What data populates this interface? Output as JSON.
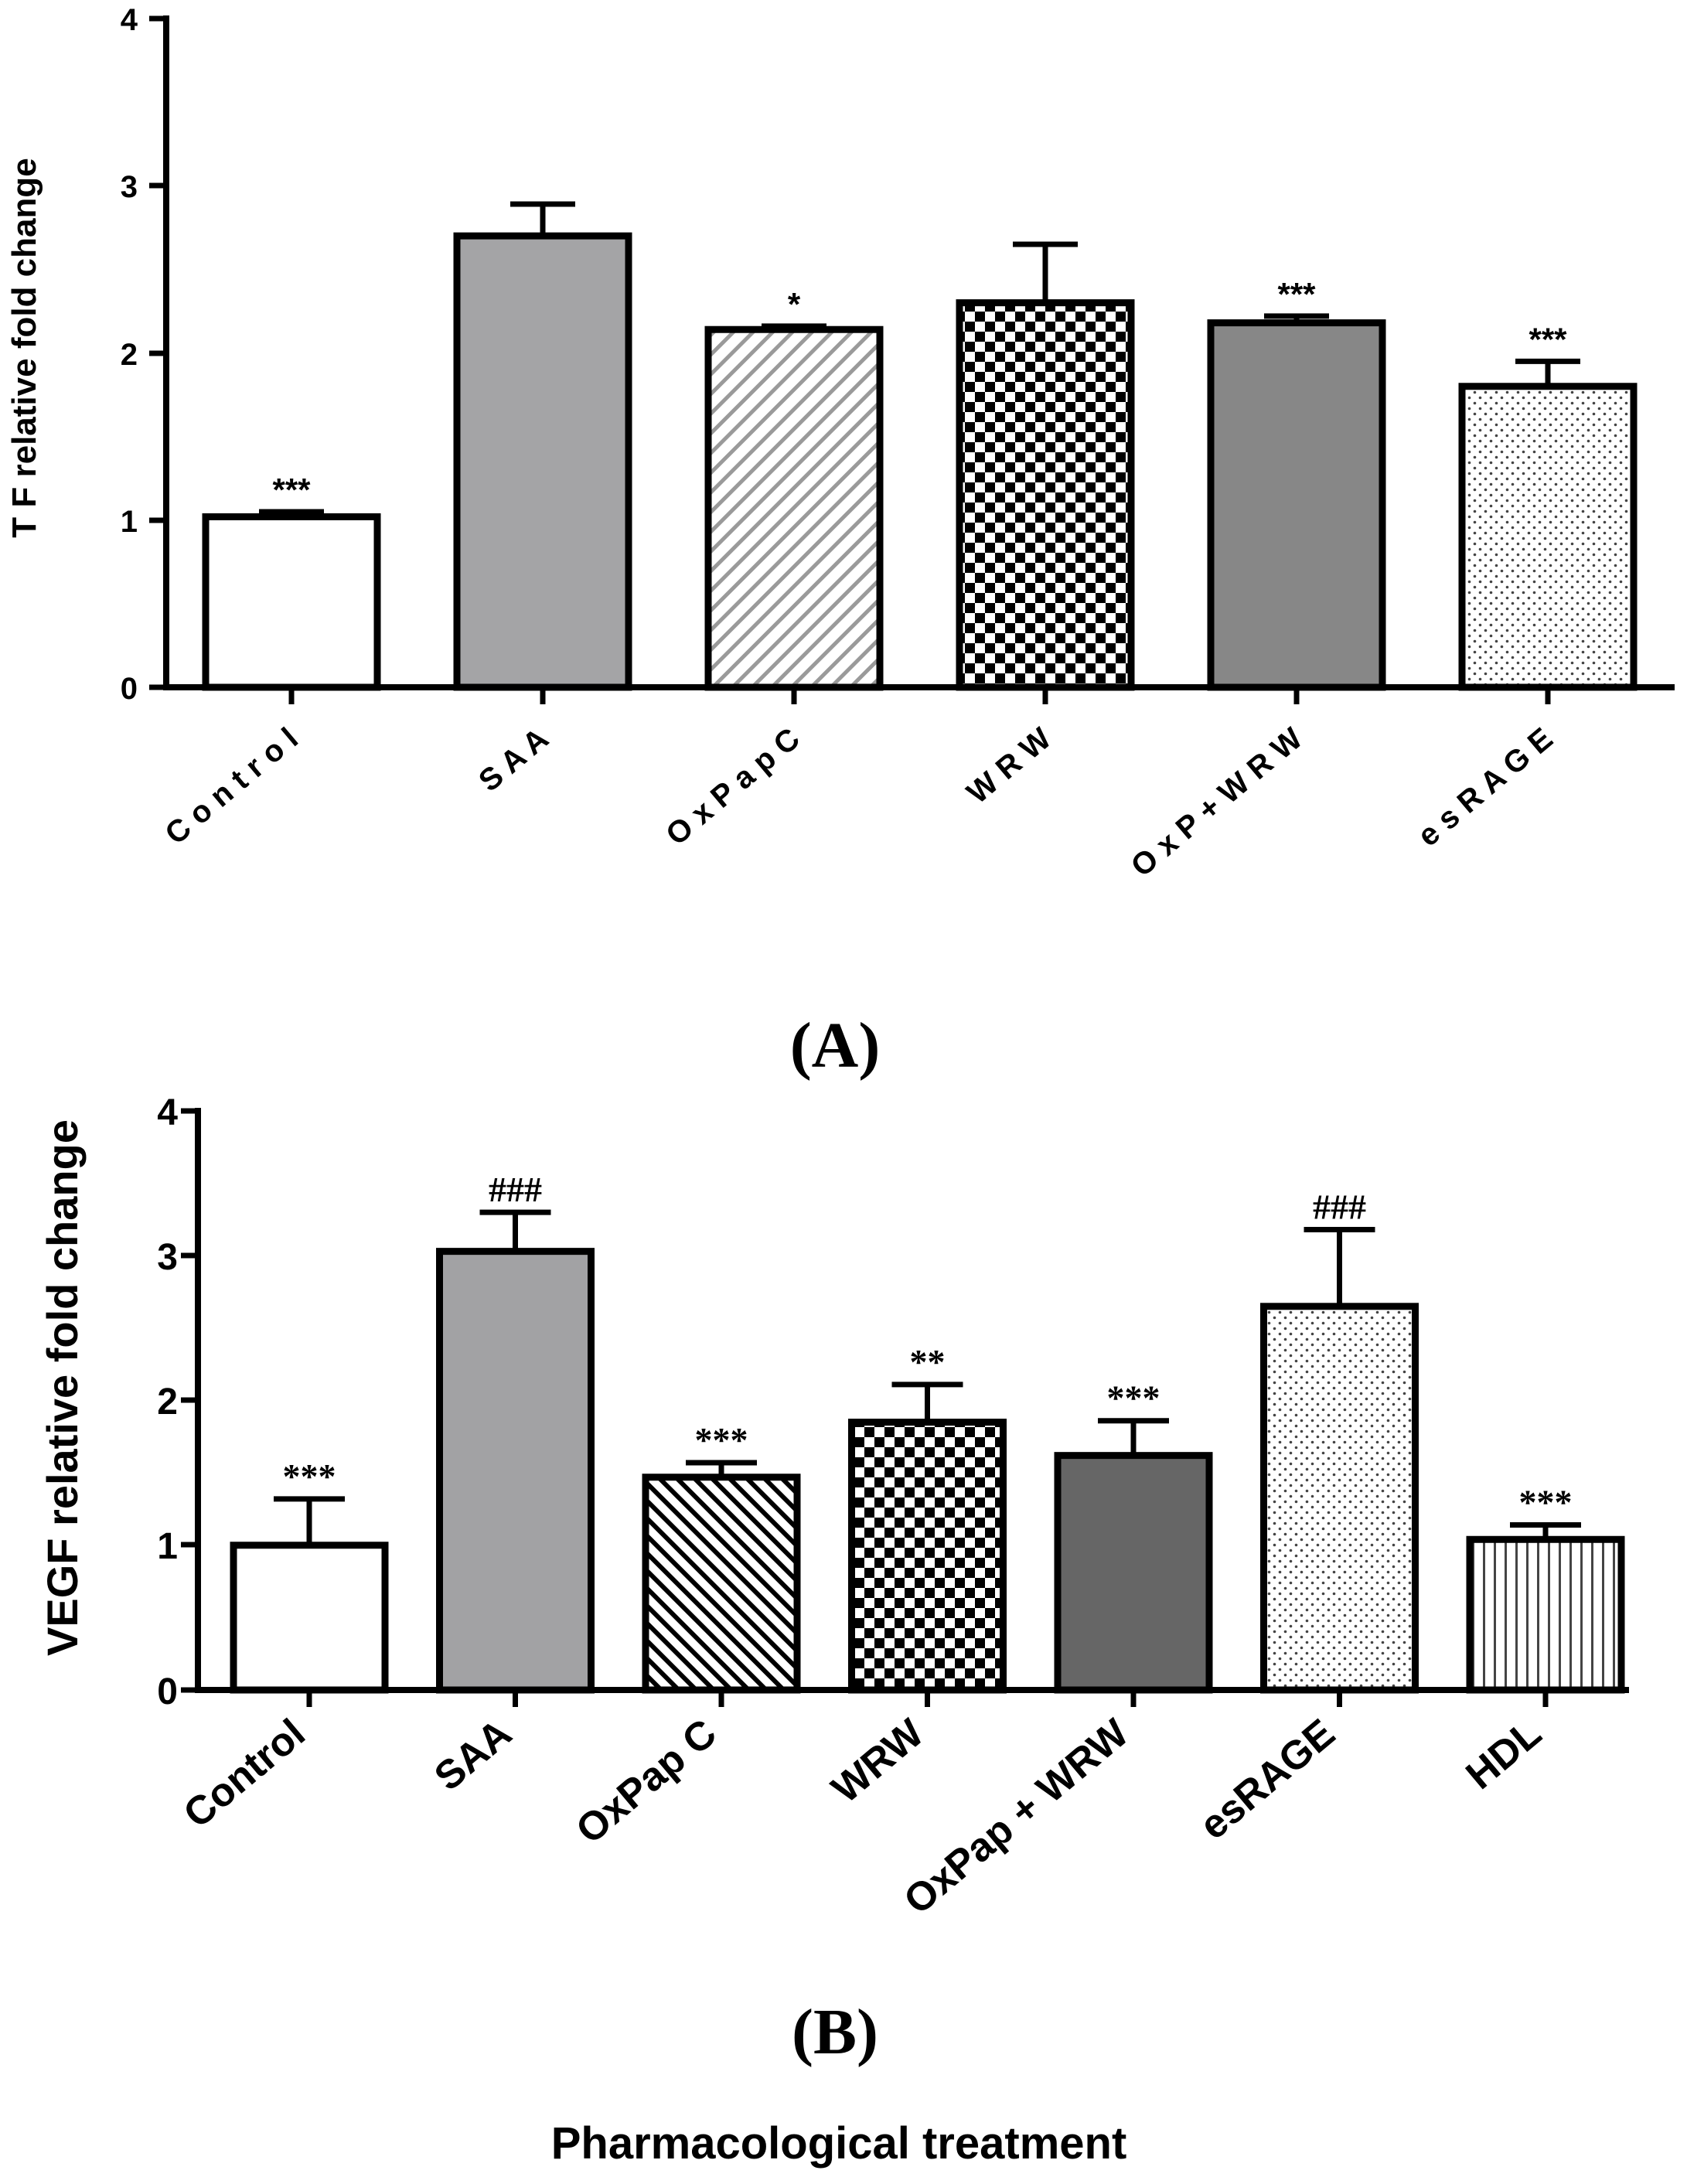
{
  "chart_data": [
    {
      "type": "bar",
      "panel_label": "(A)",
      "title": "",
      "xlabel": "",
      "ylabel": "T F  relative  fold  change",
      "ylim": [
        0,
        4
      ],
      "yticks": [
        "0",
        "1",
        "2",
        "3",
        "4"
      ],
      "categories": [
        "C o n t r o l",
        "S A A",
        "O x P a p  C",
        "W R W",
        "O x P  +  W R W",
        "e s R A G E"
      ],
      "values": [
        1.02,
        2.7,
        2.14,
        2.3,
        2.18,
        1.8
      ],
      "errors": [
        0.03,
        0.19,
        0.02,
        0.35,
        0.04,
        0.15
      ],
      "annotations": [
        "***",
        "",
        "*",
        "",
        "***",
        "***"
      ],
      "fills": [
        "white",
        "gray",
        "diag-right",
        "checker",
        "dark-gray",
        "dots"
      ],
      "colors": {
        "gray": "#a4a4a6",
        "dark_gray": "#878787",
        "stroke": "#000000"
      }
    },
    {
      "type": "bar",
      "panel_label": "(B)",
      "title": "",
      "xlabel": "Pharmacological treatment",
      "ylabel": "VEGF relative fold change",
      "ylim": [
        0,
        4
      ],
      "yticks": [
        "0",
        "1",
        "2",
        "3",
        "4"
      ],
      "categories": [
        "Control",
        "SAA",
        "OxPap C",
        "WRW",
        "OxPap + WRW",
        "esRAGE",
        "HDL"
      ],
      "values": [
        1.0,
        3.03,
        1.47,
        1.85,
        1.62,
        2.65,
        1.04
      ],
      "errors": [
        0.32,
        0.27,
        0.1,
        0.26,
        0.24,
        0.53,
        0.1
      ],
      "annotations": [
        "***",
        "###",
        "***",
        "**",
        "***",
        "###",
        "***"
      ],
      "fills": [
        "white",
        "gray",
        "diag-left",
        "checker",
        "darker-gray",
        "dots",
        "vlines"
      ],
      "colors": {
        "gray": "#a2a2a4",
        "darker_gray": "#666666",
        "stroke": "#000000"
      }
    }
  ]
}
